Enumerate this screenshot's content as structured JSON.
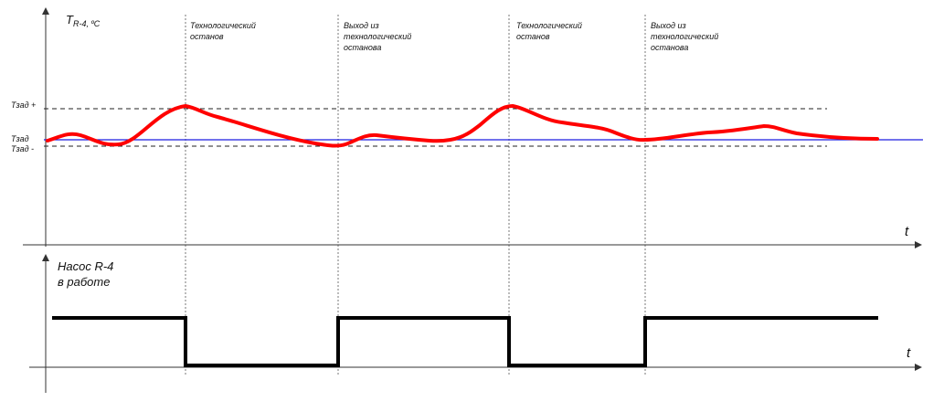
{
  "top_plot": {
    "y_label_main": "T",
    "y_label_sub": "R-4, ºC",
    "x_label": "t",
    "levels": {
      "upper": "Tзад +",
      "setpoint": "Tзад",
      "lower": "Tзад -"
    }
  },
  "bottom_plot": {
    "title_line1": "Насос R-4",
    "title_line2": "в работе",
    "x_label": "t"
  },
  "events": [
    {
      "line1": "Технологический",
      "line2": "останов",
      "line3": ""
    },
    {
      "line1": "Выход из",
      "line2": "технологический",
      "line3": "останова"
    },
    {
      "line1": "Технологический",
      "line2": "останов",
      "line3": ""
    },
    {
      "line1": "Выход из",
      "line2": "технологический",
      "line3": "останова"
    }
  ],
  "colors": {
    "temperature_curve": "#ff0000",
    "setpoint_line": "#1f1fe0",
    "pump_signal": "#000000",
    "axes": "#333333"
  }
}
